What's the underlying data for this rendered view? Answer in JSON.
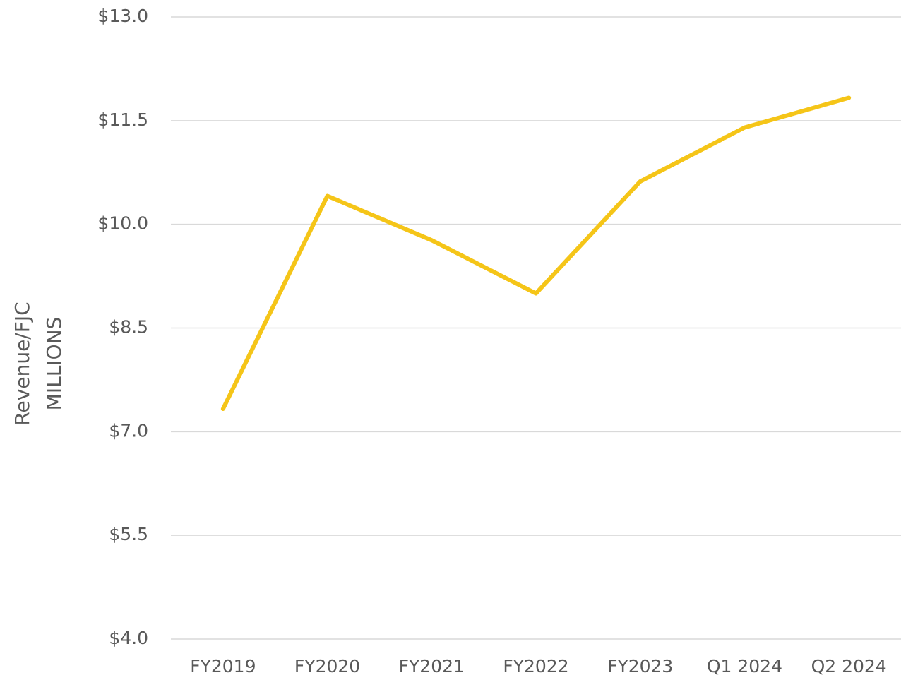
{
  "chart_data": {
    "type": "line",
    "y_label": [
      "Revenue/FJC",
      "MILLIONS"
    ],
    "categories": [
      "FY2019",
      "FY2020",
      "FY2021",
      "FY2022",
      "FY2023",
      "Q1 2024",
      "Q2 2024"
    ],
    "series": [
      {
        "name": "Revenue/FJC",
        "color": "#f5c518",
        "values": [
          7.33,
          10.41,
          9.77,
          9.0,
          10.62,
          11.4,
          11.83
        ]
      }
    ],
    "ylim": [
      4,
      13
    ],
    "yticks": [
      {
        "value": 4,
        "label": "$4.0"
      },
      {
        "value": 5.5,
        "label": "$5.5"
      },
      {
        "value": 7,
        "label": "$7.0"
      },
      {
        "value": 8.5,
        "label": "$8.5"
      },
      {
        "value": 10,
        "label": "$10.0"
      },
      {
        "value": 11.5,
        "label": "$11.5"
      },
      {
        "value": 13,
        "label": "$13.0"
      }
    ],
    "grid": true
  }
}
